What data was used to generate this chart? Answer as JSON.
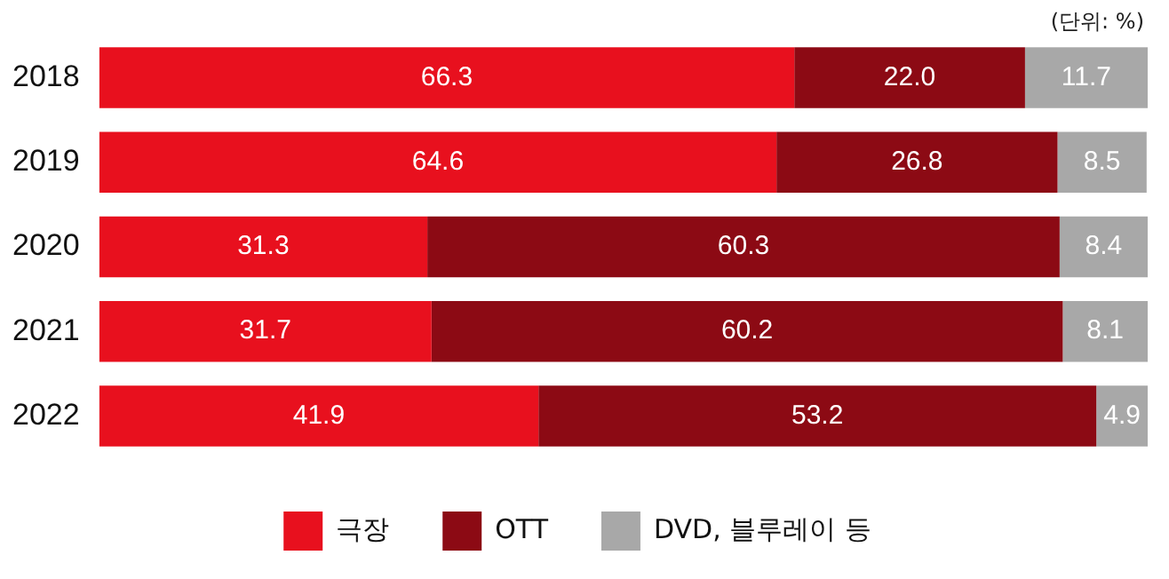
{
  "chart_data": {
    "type": "bar",
    "orientation": "horizontal",
    "stacked": true,
    "legend": "bottom",
    "categories": [
      "2018",
      "2019",
      "2020",
      "2021",
      "2022"
    ],
    "series": [
      {
        "name": "극장",
        "color": "#e8101e",
        "values": [
          66.3,
          64.6,
          31.3,
          31.7,
          41.9
        ],
        "value_labels": [
          "66.3",
          "64.6",
          "31.3",
          "31.7",
          "41.9"
        ]
      },
      {
        "name": "OTT",
        "color": "#8c0a14",
        "values": [
          22.0,
          26.8,
          60.3,
          60.2,
          53.2
        ],
        "value_labels": [
          "22.0",
          "26.8",
          "60.3",
          "60.2",
          "53.2"
        ]
      },
      {
        "name": "DVD, 블루레이 등",
        "color": "#a8a8a8",
        "values": [
          11.7,
          8.5,
          8.4,
          8.1,
          4.9
        ],
        "value_labels": [
          "11.7",
          "8.5",
          "8.4",
          "8.1",
          "4.9"
        ]
      }
    ],
    "annotations": [
      "(단위: %)"
    ]
  }
}
